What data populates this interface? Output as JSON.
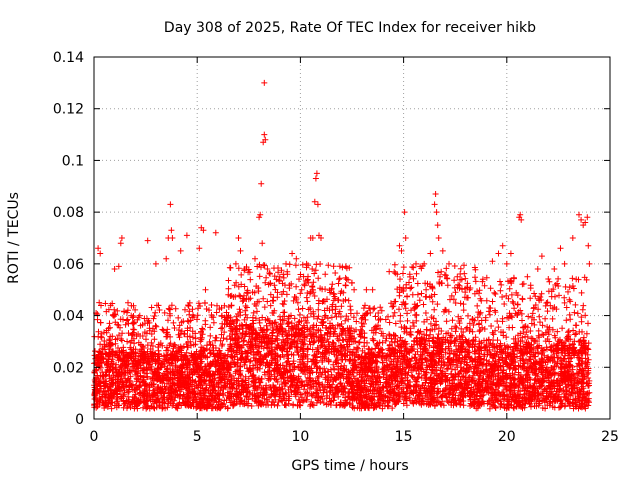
{
  "chart_data": {
    "type": "scatter",
    "title": "Day 308 of 2025, Rate Of TEC Index for receiver hikb",
    "xlabel": "GPS time / hours",
    "ylabel": "ROTI / TECUs",
    "xlim": [
      0,
      25
    ],
    "ylim": [
      0,
      0.14
    ],
    "xticks": [
      0,
      5,
      10,
      15,
      20,
      25
    ],
    "xtick_labels": [
      "0",
      "5",
      "10",
      "15",
      "20",
      "25"
    ],
    "yticks": [
      0,
      0.02,
      0.04,
      0.06,
      0.08,
      0.1,
      0.12,
      0.14
    ],
    "ytick_labels": [
      "0",
      "0.02",
      "0.04",
      "0.06",
      "0.08",
      "0.1",
      "0.12",
      "0.14"
    ],
    "grid": true,
    "marker": "+",
    "marker_color": "#ff0000",
    "x_data_range": [
      0,
      24
    ],
    "series": [
      {
        "name": "ROTI",
        "points": [
          [
            0.1,
            0.041
          ],
          [
            0.2,
            0.066
          ],
          [
            0.25,
            0.045
          ],
          [
            0.3,
            0.064
          ],
          [
            0.35,
            0.033
          ],
          [
            1.0,
            0.058
          ],
          [
            1.2,
            0.059
          ],
          [
            1.3,
            0.068
          ],
          [
            1.35,
            0.07
          ],
          [
            1.8,
            0.04
          ],
          [
            2.6,
            0.069
          ],
          [
            3.0,
            0.06
          ],
          [
            3.5,
            0.062
          ],
          [
            3.6,
            0.07
          ],
          [
            3.7,
            0.083
          ],
          [
            3.75,
            0.073
          ],
          [
            3.8,
            0.07
          ],
          [
            4.2,
            0.065
          ],
          [
            4.5,
            0.071
          ],
          [
            5.2,
            0.074
          ],
          [
            5.3,
            0.073
          ],
          [
            5.1,
            0.066
          ],
          [
            5.4,
            0.05
          ],
          [
            5.9,
            0.072
          ],
          [
            6.2,
            0.04
          ],
          [
            7.0,
            0.07
          ],
          [
            7.1,
            0.065
          ],
          [
            7.3,
            0.058
          ],
          [
            7.8,
            0.062
          ],
          [
            8.0,
            0.078
          ],
          [
            8.05,
            0.079
          ],
          [
            8.1,
            0.091
          ],
          [
            8.15,
            0.068
          ],
          [
            8.2,
            0.107
          ],
          [
            8.25,
            0.11
          ],
          [
            8.3,
            0.108
          ],
          [
            8.25,
            0.13
          ],
          [
            8.4,
            0.058
          ],
          [
            9.0,
            0.055
          ],
          [
            9.3,
            0.06
          ],
          [
            9.6,
            0.064
          ],
          [
            9.8,
            0.062
          ],
          [
            10.3,
            0.06
          ],
          [
            10.5,
            0.07
          ],
          [
            10.6,
            0.07
          ],
          [
            10.7,
            0.084
          ],
          [
            10.75,
            0.093
          ],
          [
            10.8,
            0.095
          ],
          [
            10.85,
            0.083
          ],
          [
            10.9,
            0.071
          ],
          [
            11.0,
            0.07
          ],
          [
            11.2,
            0.056
          ],
          [
            11.5,
            0.05
          ],
          [
            12.2,
            0.059
          ],
          [
            12.6,
            0.05
          ],
          [
            13.2,
            0.05
          ],
          [
            13.5,
            0.05
          ],
          [
            14.3,
            0.057
          ],
          [
            14.8,
            0.067
          ],
          [
            14.9,
            0.065
          ],
          [
            15.05,
            0.08
          ],
          [
            15.1,
            0.07
          ],
          [
            15.3,
            0.056
          ],
          [
            15.6,
            0.06
          ],
          [
            16.0,
            0.06
          ],
          [
            16.3,
            0.064
          ],
          [
            16.5,
            0.083
          ],
          [
            16.55,
            0.087
          ],
          [
            16.6,
            0.08
          ],
          [
            16.65,
            0.075
          ],
          [
            16.7,
            0.07
          ],
          [
            16.9,
            0.065
          ],
          [
            17.2,
            0.06
          ],
          [
            17.6,
            0.055
          ],
          [
            18.2,
            0.05
          ],
          [
            19.3,
            0.061
          ],
          [
            19.6,
            0.064
          ],
          [
            19.8,
            0.067
          ],
          [
            20.0,
            0.06
          ],
          [
            20.2,
            0.064
          ],
          [
            20.6,
            0.078
          ],
          [
            20.65,
            0.079
          ],
          [
            20.7,
            0.077
          ],
          [
            21.0,
            0.055
          ],
          [
            21.5,
            0.058
          ],
          [
            21.7,
            0.063
          ],
          [
            22.3,
            0.058
          ],
          [
            22.6,
            0.066
          ],
          [
            22.8,
            0.06
          ],
          [
            23.2,
            0.07
          ],
          [
            23.5,
            0.079
          ],
          [
            23.6,
            0.077
          ],
          [
            23.7,
            0.075
          ],
          [
            23.8,
            0.076
          ],
          [
            23.9,
            0.078
          ],
          [
            23.95,
            0.067
          ],
          [
            24.0,
            0.06
          ]
        ],
        "dense_band": {
          "note": "dense background scatter between ~0.005 and ~0.025 across 0-24 h",
          "segments": [
            {
              "x": [
                0,
                6.5
              ],
              "low": 0.004,
              "high": 0.025,
              "upper_spread": 0.045
            },
            {
              "x": [
                6.5,
                12.5
              ],
              "low": 0.005,
              "high": 0.035,
              "upper_spread": 0.06
            },
            {
              "x": [
                12.5,
                14.5
              ],
              "low": 0.004,
              "high": 0.025,
              "upper_spread": 0.045
            },
            {
              "x": [
                14.5,
                18.5
              ],
              "low": 0.005,
              "high": 0.03,
              "upper_spread": 0.06
            },
            {
              "x": [
                18.5,
                24
              ],
              "low": 0.004,
              "high": 0.028,
              "upper_spread": 0.055
            }
          ]
        }
      }
    ]
  }
}
